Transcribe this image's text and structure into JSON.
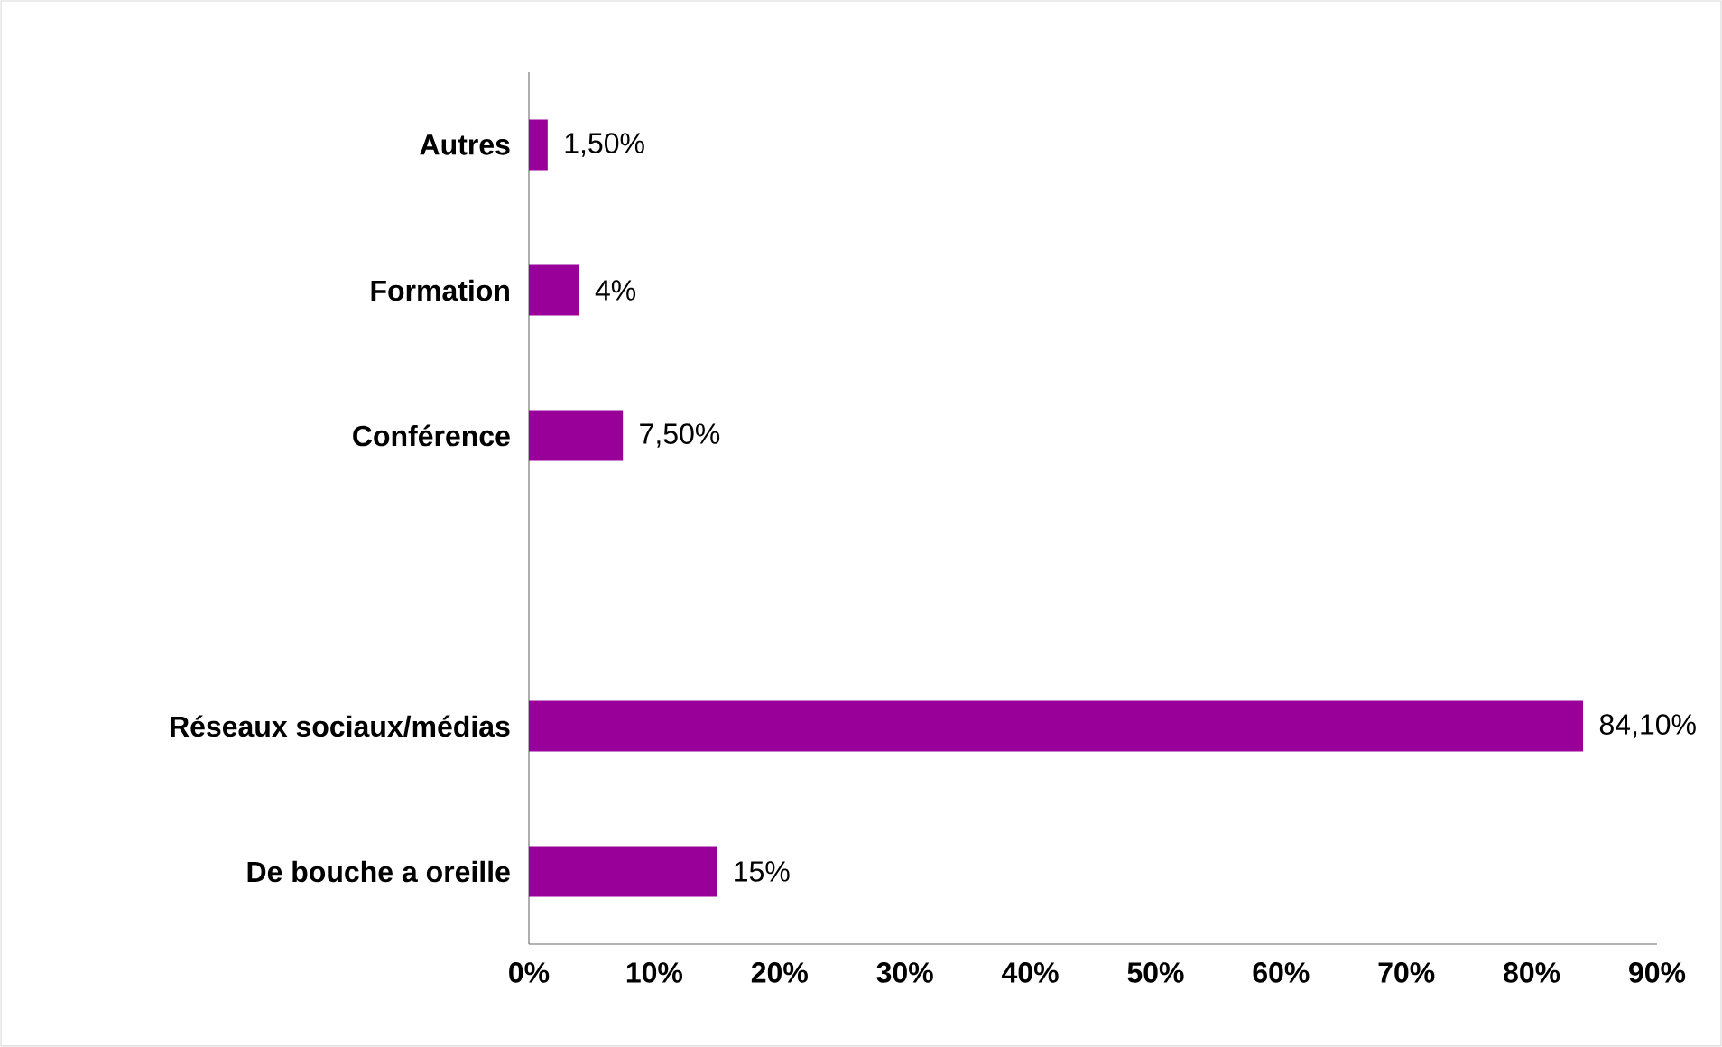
{
  "chart_data": {
    "type": "bar",
    "orientation": "horizontal",
    "categories": [
      "Autres",
      "Formation",
      "Conférence",
      null,
      "Réseaux sociaux/médias",
      "De bouche a oreille"
    ],
    "values": [
      1.5,
      4,
      7.5,
      null,
      84.1,
      15
    ],
    "value_labels": [
      "1,50%",
      "4%",
      "7,50%",
      null,
      "84,10%",
      "15%"
    ],
    "color": "#990099",
    "xlim": [
      0,
      90
    ],
    "xticks": [
      {
        "value": 0,
        "label": "0%"
      },
      {
        "value": 10,
        "label": "10%"
      },
      {
        "value": 20,
        "label": "20%"
      },
      {
        "value": 30,
        "label": "30%"
      },
      {
        "value": 40,
        "label": "40%"
      },
      {
        "value": 50,
        "label": "50%"
      },
      {
        "value": 60,
        "label": "60%"
      },
      {
        "value": 70,
        "label": "70%"
      },
      {
        "value": 80,
        "label": "80%"
      },
      {
        "value": 90,
        "label": "90%"
      }
    ]
  }
}
